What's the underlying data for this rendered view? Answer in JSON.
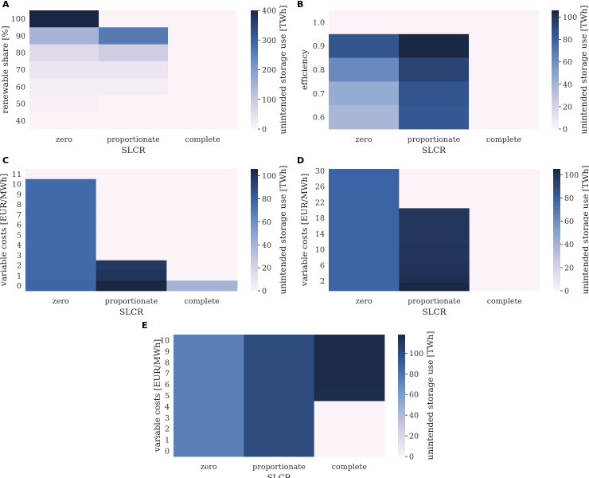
{
  "colormap": [
    "#fcf3f8",
    "#cbc8e1",
    "#7f9fcb",
    "#3a62a3",
    "#1a2744"
  ],
  "chart_data": [
    {
      "panel": "A",
      "type": "heatmap",
      "xlabel": "SLCR",
      "ylabel": "renewable share [%]",
      "x_categories": [
        "zero",
        "proportionate",
        "complete"
      ],
      "y_values": [
        "100",
        "90",
        "80",
        "70",
        "60",
        "50",
        "40"
      ],
      "y_tick_labels": [
        "100",
        "90",
        "80",
        "70",
        "60",
        "50",
        "40"
      ],
      "values": [
        [
          400,
          0,
          0
        ],
        [
          150,
          260,
          0
        ],
        [
          60,
          90,
          0
        ],
        [
          30,
          30,
          0
        ],
        [
          15,
          15,
          0
        ],
        [
          8,
          0,
          0
        ],
        [
          0,
          0,
          0
        ]
      ],
      "colorbar": {
        "label": "unintended storage use [TWh]",
        "vmin": 0,
        "vmax": 400,
        "ticks": [
          "0",
          "100",
          "200",
          "300",
          "400"
        ]
      }
    },
    {
      "panel": "B",
      "type": "heatmap",
      "xlabel": "SLCR",
      "ylabel": "efficiency",
      "x_categories": [
        "zero",
        "proportionate",
        "complete"
      ],
      "y_values": [
        "1.0",
        "0.9",
        "0.8",
        "0.7",
        "0.6"
      ],
      "y_tick_labels": [
        "1.0",
        "0.9",
        "0.8",
        "0.7",
        "0.6"
      ],
      "values": [
        [
          0,
          0,
          0
        ],
        [
          85,
          106,
          0
        ],
        [
          62,
          93,
          0
        ],
        [
          45,
          86,
          0
        ],
        [
          38,
          84,
          0
        ]
      ],
      "colorbar": {
        "label": "unintended storage use [TWh]",
        "vmin": 0,
        "vmax": 106,
        "ticks": [
          "0",
          "20",
          "40",
          "60",
          "80",
          "100"
        ]
      }
    },
    {
      "panel": "C",
      "type": "heatmap",
      "xlabel": "SLCR",
      "ylabel": "variable costs [EUR/MWh]",
      "x_categories": [
        "zero",
        "proportionate",
        "complete"
      ],
      "y_values": [
        "11",
        "10",
        "9",
        "8",
        "7",
        "6",
        "5",
        "4",
        "3",
        "2",
        "1",
        "0"
      ],
      "y_tick_labels": [
        "11",
        "10",
        "9",
        "8",
        "7",
        "6",
        "5",
        "4",
        "3",
        "2",
        "1",
        "0"
      ],
      "values": [
        [
          0,
          0,
          0
        ],
        [
          76,
          0,
          0
        ],
        [
          76,
          0,
          0
        ],
        [
          76,
          0,
          0
        ],
        [
          76,
          0,
          0
        ],
        [
          76,
          0,
          0
        ],
        [
          76,
          0,
          0
        ],
        [
          76,
          0,
          0
        ],
        [
          76,
          0,
          0
        ],
        [
          77,
          98,
          0
        ],
        [
          77,
          100,
          0
        ],
        [
          78,
          106,
          40
        ]
      ],
      "colorbar": {
        "label": "unintended storage use [TWh]",
        "vmin": 0,
        "vmax": 106,
        "ticks": [
          "0",
          "20",
          "40",
          "60",
          "80",
          "100"
        ]
      }
    },
    {
      "panel": "D",
      "type": "heatmap",
      "xlabel": "SLCR",
      "ylabel": "variable costs [EUR/MWh]",
      "x_categories": [
        "zero",
        "proportionate",
        "complete"
      ],
      "y_values": [
        "30",
        "29",
        "28",
        "27",
        "26",
        "25",
        "24",
        "23",
        "22",
        "21",
        "20",
        "19",
        "18",
        "17",
        "16",
        "15",
        "14",
        "13",
        "12",
        "11",
        "10",
        "9",
        "8",
        "7",
        "6",
        "5",
        "4",
        "3",
        "2",
        "1",
        "0"
      ],
      "y_tick_labels": [
        "30",
        "26",
        "22",
        "18",
        "14",
        "10",
        "6",
        "2"
      ],
      "values": [
        [
          78,
          0,
          0
        ],
        [
          78,
          0,
          0
        ],
        [
          78,
          0,
          0
        ],
        [
          78,
          0,
          0
        ],
        [
          78,
          0,
          0
        ],
        [
          78,
          0,
          0
        ],
        [
          78,
          0,
          0
        ],
        [
          78,
          0,
          0
        ],
        [
          78,
          0,
          0
        ],
        [
          78,
          0,
          0
        ],
        [
          78,
          98,
          0
        ],
        [
          78,
          98,
          0
        ],
        [
          78,
          98,
          0
        ],
        [
          78,
          98,
          0
        ],
        [
          78,
          98,
          0
        ],
        [
          78,
          98,
          0
        ],
        [
          78,
          98,
          0
        ],
        [
          78,
          98,
          0
        ],
        [
          78,
          98,
          0
        ],
        [
          78,
          99,
          0
        ],
        [
          78,
          99,
          0
        ],
        [
          78,
          99,
          0
        ],
        [
          78,
          99,
          0
        ],
        [
          78,
          99,
          0
        ],
        [
          78,
          100,
          0
        ],
        [
          78,
          100,
          0
        ],
        [
          78,
          100,
          0
        ],
        [
          78,
          101,
          0
        ],
        [
          78,
          102,
          0
        ],
        [
          78,
          104,
          0
        ],
        [
          78,
          105,
          0
        ]
      ],
      "colorbar": {
        "label": "unintended storage use [TWh]",
        "vmin": 0,
        "vmax": 105,
        "ticks": [
          "0",
          "20",
          "40",
          "60",
          "80",
          "100"
        ]
      }
    },
    {
      "panel": "E",
      "type": "heatmap",
      "xlabel": "SLCR",
      "ylabel": "variable costs [EUR/MWh]",
      "x_categories": [
        "zero",
        "proportionate",
        "complete"
      ],
      "y_values": [
        "10",
        "9",
        "8",
        "7",
        "6",
        "5",
        "4",
        "3",
        "2",
        "1",
        "0"
      ],
      "y_tick_labels": [
        "10",
        "9",
        "8",
        "7",
        "6",
        "5",
        "4",
        "3",
        "2",
        "1",
        "0"
      ],
      "values": [
        [
          75,
          100,
          116
        ],
        [
          75,
          100,
          116
        ],
        [
          75,
          100,
          116
        ],
        [
          75,
          100,
          116
        ],
        [
          75,
          100,
          116
        ],
        [
          75,
          100,
          115
        ],
        [
          75,
          100,
          0
        ],
        [
          75,
          100,
          0
        ],
        [
          75,
          100,
          0
        ],
        [
          75,
          100,
          0
        ],
        [
          75,
          100,
          0
        ]
      ],
      "colorbar": {
        "label": "unintended storage use [TWh]",
        "vmin": 0,
        "vmax": 118,
        "ticks": [
          "0",
          "20",
          "40",
          "60",
          "80",
          "100"
        ]
      }
    }
  ]
}
